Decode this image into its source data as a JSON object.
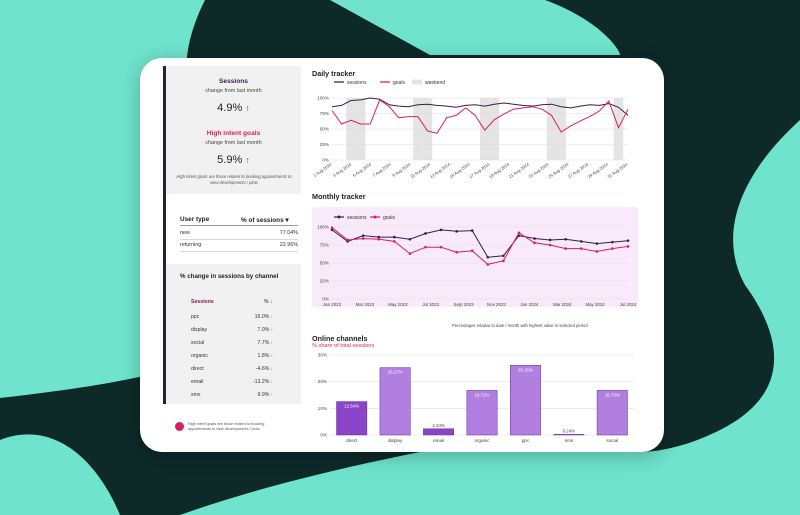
{
  "colors": {
    "background": "#0d2a28",
    "shape": "#6fe3cc",
    "sessions": "#3d1a4d",
    "goals": "#d91f5e",
    "weekend": "#e4e4e4",
    "bar": "#b07fe0",
    "bar_dark": "#8a44c8",
    "accent": "#d91f5e"
  },
  "sessions": {
    "title": "Sessions",
    "subtitle": "change from last month",
    "value": "4.9%",
    "arrow": "↑"
  },
  "goals": {
    "title": "High intent goals",
    "subtitle": "change from last month",
    "value": "5.9%",
    "arrow": "↑",
    "note": "High intent goals are those related to booking appointments to view developments / plots"
  },
  "user_type": {
    "header_left": "User type",
    "header_right": "% of sessions",
    "rows": [
      {
        "label": "new",
        "value": "77.04%"
      },
      {
        "label": "returning",
        "value": "22.96%"
      }
    ]
  },
  "channels_change": {
    "title": "% change in sessions by channel",
    "header_left": "Sessions",
    "header_right": "% ↓",
    "rows": [
      {
        "label": "ppc",
        "value": "16.0%",
        "dir": "up"
      },
      {
        "label": "display",
        "value": "7.0%",
        "dir": "up"
      },
      {
        "label": "social",
        "value": "7.7%",
        "dir": "up"
      },
      {
        "label": "organic",
        "value": "1.8%",
        "dir": "up"
      },
      {
        "label": "direct",
        "value": "-4.6%",
        "dir": "down"
      },
      {
        "label": "email",
        "value": "-13.2%",
        "dir": "down"
      },
      {
        "label": "sms",
        "value": "9.9%",
        "dir": "up"
      }
    ]
  },
  "footer_note": "High intent goals are those related to booking appointments to view developments / plots",
  "daily": {
    "title": "Daily tracker",
    "legend": [
      "sessions",
      "goals",
      "weekend"
    ]
  },
  "monthly": {
    "title": "Monthly tracker",
    "legend": [
      "sessions",
      "goals"
    ],
    "footnote": "Percentages relative to date / month with highest value in selected period"
  },
  "channels": {
    "title": "Online channels",
    "subtitle": "% share of total sessions"
  },
  "chart_data": [
    {
      "type": "line",
      "title": "Daily tracker",
      "ylim": [
        0,
        100
      ],
      "yticks": [
        "0%",
        "25%",
        "50%",
        "75%",
        "100%"
      ],
      "x_labels": [
        "1 Aug 2024",
        "3 Aug 2024",
        "5 Aug 2024",
        "7 Aug 2024",
        "9 Aug 2024",
        "11 Aug 2024",
        "13 Aug 2024",
        "15 Aug 2024",
        "17 Aug 2024",
        "19 Aug 2024",
        "21 Aug 2024",
        "23 Aug 2024",
        "25 Aug 2024",
        "27 Aug 2024",
        "29 Aug 2024",
        "31 Aug 2024"
      ],
      "weekend_days": [
        3,
        4,
        10,
        11,
        17,
        18,
        24,
        25,
        31
      ],
      "series": [
        {
          "name": "sessions",
          "values": [
            86,
            88,
            96,
            97,
            100,
            98,
            89,
            87,
            86,
            89,
            90,
            88,
            87,
            85,
            88,
            89,
            87,
            90,
            92,
            90,
            88,
            87,
            89,
            90,
            86,
            84,
            87,
            89,
            88,
            91,
            85,
            72
          ]
        },
        {
          "name": "goals",
          "values": [
            80,
            58,
            64,
            58,
            58,
            97,
            86,
            68,
            70,
            70,
            47,
            43,
            68,
            72,
            84,
            72,
            48,
            65,
            74,
            82,
            84,
            86,
            82,
            72,
            45,
            55,
            63,
            70,
            79,
            95,
            52,
            82
          ]
        }
      ]
    },
    {
      "type": "line",
      "title": "Monthly tracker",
      "ylim": [
        0,
        100
      ],
      "yticks": [
        "0%",
        "25%",
        "50%",
        "75%",
        "100%"
      ],
      "x_labels": [
        "Jan 2023",
        "Mar 2023",
        "May 2023",
        "Jul 2023",
        "Sept 2023",
        "Nov 2023",
        "Jan 2024",
        "Mar 2024",
        "May 2024",
        "Jul 2024"
      ],
      "series": [
        {
          "name": "sessions",
          "values": [
            96,
            80,
            88,
            86,
            86,
            83,
            91,
            96,
            94,
            95,
            58,
            60,
            88,
            84,
            82,
            83,
            80,
            77,
            79,
            81
          ]
        },
        {
          "name": "goals",
          "values": [
            99,
            82,
            84,
            83,
            80,
            63,
            72,
            72,
            65,
            67,
            48,
            53,
            92,
            78,
            75,
            70,
            70,
            66,
            70,
            73
          ]
        }
      ]
    },
    {
      "type": "bar",
      "title": "Online channels",
      "categories": [
        "direct",
        "display",
        "email",
        "organic",
        "ppc",
        "sms",
        "social"
      ],
      "values": [
        12.54,
        25.27,
        2.34,
        16.72,
        26.15,
        0.24,
        16.73
      ],
      "value_labels": [
        "12.54%",
        "25.27%",
        "2.34%",
        "16.72%",
        "26.15%",
        "0.24%",
        "16.73%"
      ],
      "ylim": [
        0,
        30
      ],
      "yticks": [
        "0%",
        "10%",
        "20%",
        "30%"
      ]
    }
  ]
}
